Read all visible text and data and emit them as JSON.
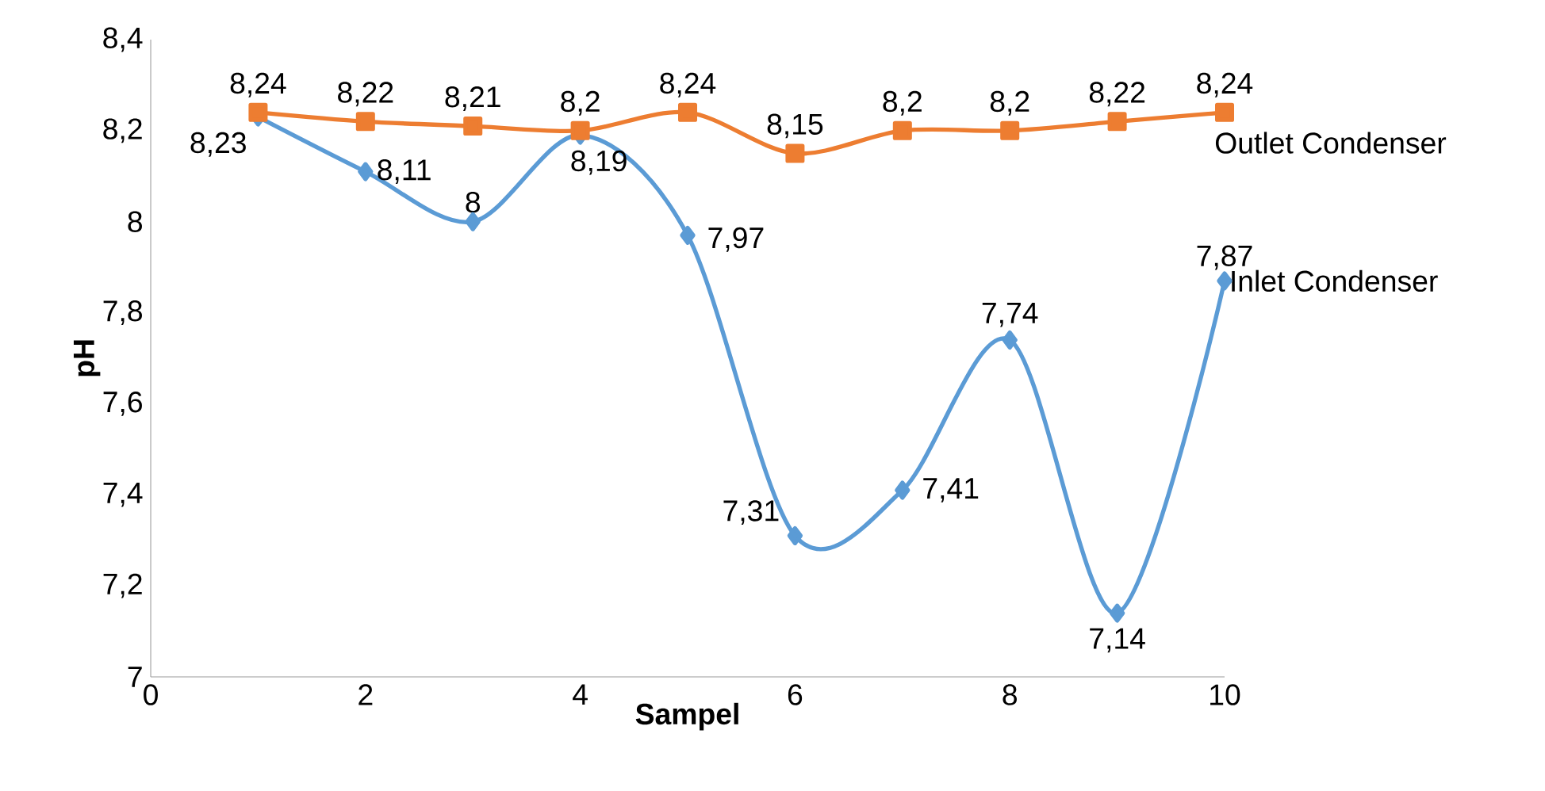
{
  "chart_data": {
    "type": "line",
    "xlabel": "Sampel",
    "ylabel": "pH",
    "xlim": [
      0,
      10
    ],
    "ylim": [
      7,
      8.4
    ],
    "xticks": [
      0,
      2,
      4,
      6,
      8,
      10
    ],
    "yticks": [
      7,
      {
        "value": 7.2,
        "label": "7,2"
      },
      {
        "value": 7.4,
        "label": "7,4"
      },
      {
        "value": 7.6,
        "label": "7,6"
      },
      {
        "value": 7.8,
        "label": "7,8"
      },
      8,
      {
        "value": 8.2,
        "label": "8,2"
      },
      {
        "value": 8.4,
        "label": "8,4"
      }
    ],
    "x": [
      1,
      2,
      3,
      4,
      5,
      6,
      7,
      8,
      9,
      10
    ],
    "series": [
      {
        "name": "Inlet Condenser",
        "color": "#5b9bd5",
        "marker": "diamond",
        "values": [
          8.23,
          8.11,
          8.0,
          8.19,
          7.97,
          7.31,
          7.41,
          7.74,
          7.14,
          7.87
        ],
        "value_labels": [
          "8,23",
          "8,11",
          "8",
          "8,19",
          "7,97",
          "7,31",
          "7,41",
          "7,74",
          "7,14",
          "7,87"
        ]
      },
      {
        "name": "Outlet Condenser",
        "color": "#ed7d31",
        "marker": "square",
        "values": [
          8.24,
          8.22,
          8.21,
          8.2,
          8.24,
          8.15,
          8.2,
          8.2,
          8.22,
          8.24
        ],
        "value_labels": [
          "8,24",
          "8,22",
          "8,21",
          "8,2",
          "8,24",
          "8,15",
          "8,2",
          "8,2",
          "8,22",
          "8,24"
        ]
      }
    ],
    "legend": false,
    "grid": false,
    "line_style": "solid"
  }
}
